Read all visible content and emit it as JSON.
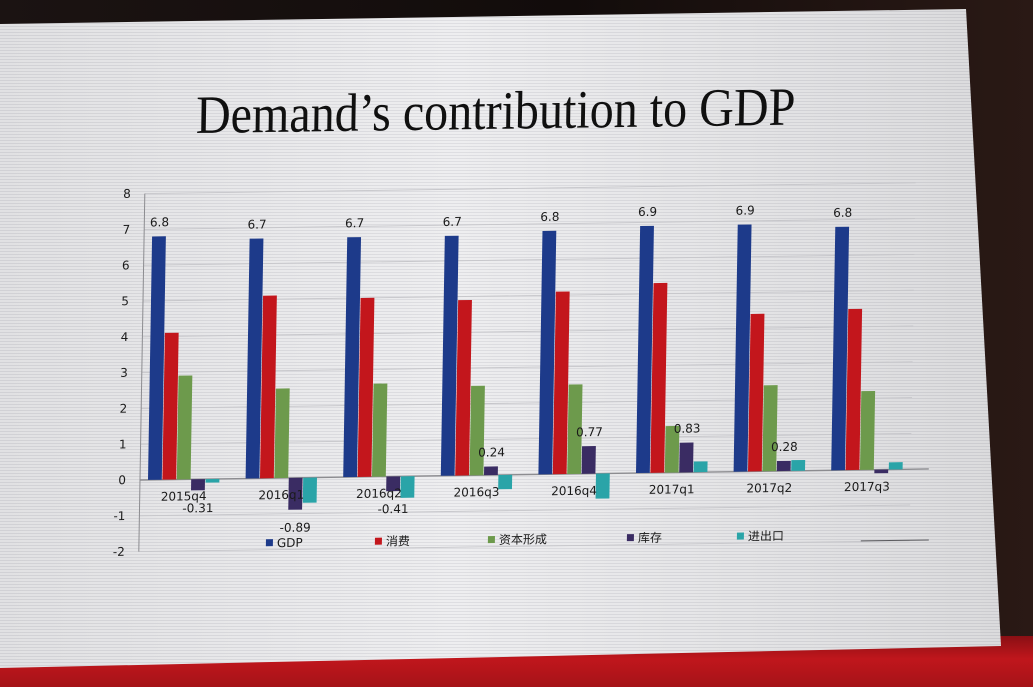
{
  "chart_data": {
    "type": "bar",
    "title": "Demand’s contribution to GDP",
    "categories": [
      "2015q4",
      "2016q1",
      "2016q2",
      "2016q3",
      "2016q4",
      "2017q1",
      "2017q2",
      "2017q3"
    ],
    "series": [
      {
        "name": "GDP",
        "color": "#1d3a8a",
        "values": [
          6.8,
          6.7,
          6.7,
          6.7,
          6.8,
          6.9,
          6.9,
          6.8
        ],
        "labels": [
          "6.8",
          "6.7",
          "6.7",
          "6.7",
          "6.8",
          "6.9",
          "6.9",
          "6.8"
        ]
      },
      {
        "name": "消费",
        "color": "#c3161c",
        "values": [
          4.1,
          5.1,
          5.0,
          4.9,
          5.1,
          5.3,
          4.4,
          4.5
        ]
      },
      {
        "name": "资本形成",
        "color": "#6d9a4c",
        "values": [
          2.9,
          2.5,
          2.6,
          2.5,
          2.5,
          1.3,
          2.4,
          2.2
        ]
      },
      {
        "name": "库存",
        "color": "#3a2c63",
        "values": [
          -0.31,
          -0.89,
          -0.41,
          0.24,
          0.77,
          0.83,
          0.28,
          -0.1
        ],
        "labels": [
          "-0.31",
          "-0.89",
          "-0.41",
          "0.24",
          "0.77",
          "0.83",
          "0.28",
          ""
        ]
      },
      {
        "name": "进出口",
        "color": "#2aa4a8",
        "values": [
          -0.1,
          -0.7,
          -0.6,
          -0.4,
          -0.7,
          0.3,
          0.3,
          0.2
        ]
      }
    ],
    "ylim": [
      -2,
      8
    ],
    "yticks": [
      8,
      7,
      6,
      5,
      4,
      3,
      2,
      1,
      0,
      -1,
      -2
    ],
    "grid": true,
    "legend": "bottom"
  }
}
